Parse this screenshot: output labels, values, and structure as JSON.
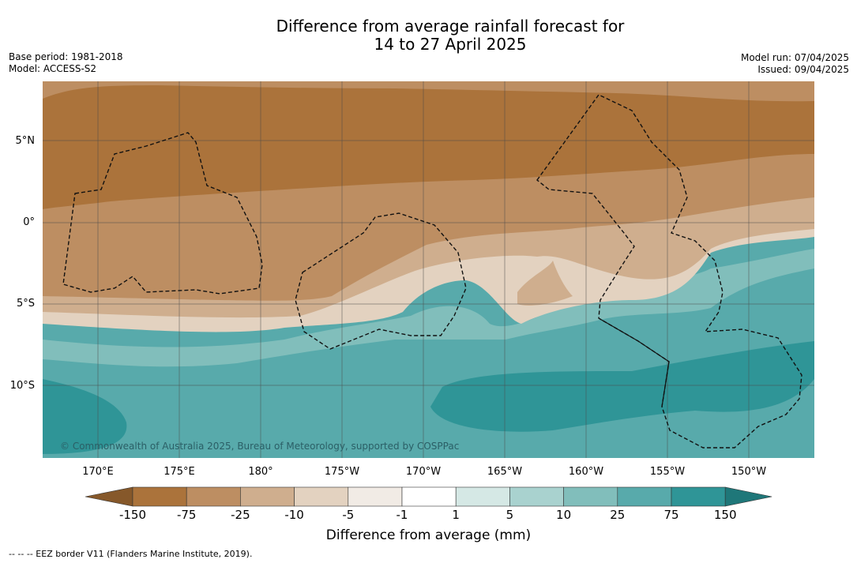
{
  "title_line1": "Difference from average rainfall forecast for",
  "title_line2": "14 to 27 April 2025",
  "base_period": "Base period: 1981-2018",
  "model": "Model: ACCESS-S2",
  "model_run": "Model run: 07/04/2025",
  "issued": "Issued: 09/04/2025",
  "lat_labels": [
    "5°N",
    "0°",
    "5°S",
    "10°S"
  ],
  "lon_labels": [
    "170°E",
    "175°E",
    "180°",
    "175°W",
    "170°W",
    "165°W",
    "160°W",
    "155°W",
    "150°W"
  ],
  "copyright": "© Commonwealth of Australia 2025, Bureau of Meteorology, supported by COSPPac",
  "colorbar": {
    "ticks": [
      "-150",
      "-75",
      "-25",
      "-10",
      "-5",
      "-1",
      "1",
      "5",
      "10",
      "25",
      "75",
      "150"
    ],
    "colors": [
      "#86582a",
      "#ab733b",
      "#bd8e62",
      "#cfae8e",
      "#e3d2c0",
      "#f1ebe5",
      "#ffffff",
      "#d5e8e5",
      "#a9d2cf",
      "#81bebb",
      "#58aaab",
      "#2f9597",
      "#1f7779"
    ],
    "label": "Difference from average (mm)"
  },
  "legend_note": "--  --  -- EEZ border V11 (Flanders Marine Institute, 2019)."
}
